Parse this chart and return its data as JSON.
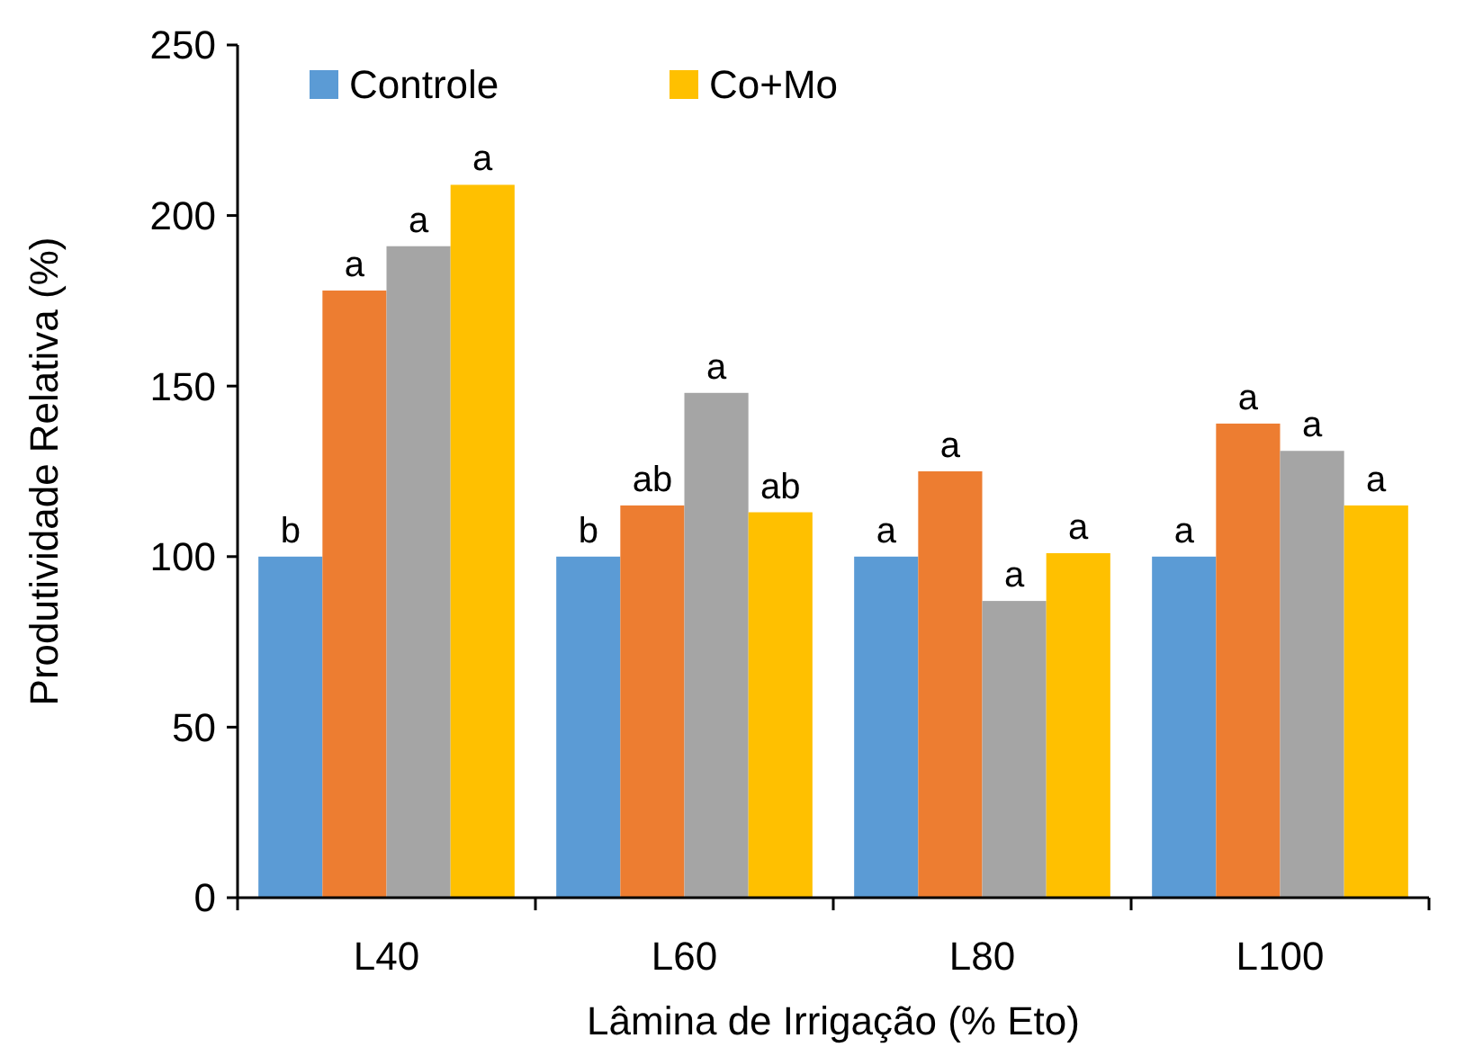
{
  "chart_data": {
    "type": "bar",
    "xlabel": "Lâmina de Irrigação (% Eto)",
    "ylabel": "Produtividade Relativa (%)",
    "categories": [
      "L40",
      "L60",
      "L80",
      "L100"
    ],
    "series": [
      {
        "name": "Controle",
        "color": "#5b9bd5",
        "values": [
          100,
          100,
          100,
          100
        ],
        "value_labels": [
          "b",
          "b",
          "a",
          "a"
        ]
      },
      {
        "color": "#ed7d31",
        "values": [
          178,
          115,
          125,
          139
        ],
        "value_labels": [
          "a",
          "ab",
          "a",
          "a"
        ]
      },
      {
        "color": "#a5a5a5",
        "values": [
          191,
          148,
          87,
          131
        ],
        "value_labels": [
          "a",
          "a",
          "a",
          "a"
        ]
      },
      {
        "name": "Co+Mo",
        "color": "#ffc000",
        "values": [
          209,
          113,
          101,
          115
        ],
        "value_labels": [
          "a",
          "ab",
          "a",
          "a"
        ]
      }
    ],
    "ylim": [
      0,
      250
    ],
    "yticks": [
      0,
      50,
      100,
      150,
      200,
      250
    ],
    "grid": false,
    "legend": "top"
  }
}
